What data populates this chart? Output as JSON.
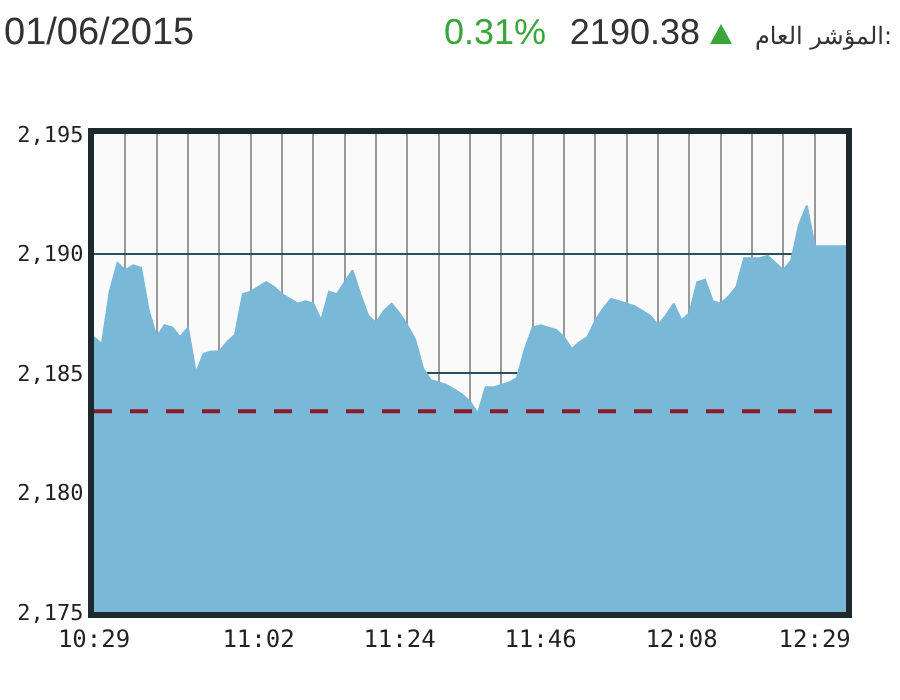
{
  "chart_data": {
    "type": "area",
    "title": "المؤشر العام:",
    "annotations": [
      "2190.38",
      "0.31%",
      "01/06/2015"
    ],
    "categories": [
      "10:29",
      null,
      null,
      null,
      null,
      null,
      null,
      null,
      null,
      null,
      null,
      null,
      null,
      null,
      null,
      null,
      null,
      null,
      null,
      null,
      null,
      "11:02",
      null,
      null,
      null,
      null,
      null,
      null,
      null,
      null,
      null,
      null,
      null,
      null,
      null,
      null,
      null,
      null,
      null,
      "11:24",
      null,
      null,
      null,
      null,
      null,
      null,
      null,
      null,
      null,
      null,
      null,
      null,
      null,
      null,
      null,
      null,
      null,
      "11:46",
      null,
      null,
      null,
      null,
      null,
      null,
      null,
      null,
      null,
      null,
      null,
      null,
      null,
      null,
      null,
      null,
      null,
      "12:08",
      null,
      null,
      null,
      null,
      null,
      null,
      null,
      null,
      null,
      null,
      null,
      null,
      null,
      null,
      null,
      null,
      "12:29",
      null,
      null,
      null,
      null
    ],
    "series": [
      {
        "color": "#7ab8d8",
        "values": [
          2186.5,
          2186.2,
          2188.4,
          2189.6,
          2189.3,
          2189.5,
          2189.4,
          2187.6,
          2186.5,
          2187.0,
          2186.9,
          2186.5,
          2186.9,
          2185.0,
          2185.8,
          2185.9,
          2185.9,
          2186.3,
          2186.6,
          2188.3,
          2188.4,
          2188.6,
          2188.8,
          2188.6,
          2188.3,
          2188.1,
          2187.9,
          2188.0,
          2187.9,
          2187.2,
          2188.4,
          2188.3,
          2188.8,
          2189.3,
          2188.3,
          2187.4,
          2187.1,
          2187.6,
          2187.9,
          2187.5,
          2187.0,
          2186.4,
          2185.2,
          2184.7,
          2184.6,
          2184.5,
          2184.3,
          2184.1,
          2183.8,
          2183.3,
          2184.4,
          2184.4,
          2184.5,
          2184.6,
          2184.8,
          2186.0,
          2186.9,
          2187.0,
          2186.9,
          2186.8,
          2186.5,
          2186.0,
          2186.3,
          2186.5,
          2187.2,
          2187.7,
          2188.1,
          2188.0,
          2187.9,
          2187.8,
          2187.6,
          2187.4,
          2187.0,
          2187.4,
          2187.9,
          2187.2,
          2187.5,
          2188.8,
          2188.9,
          2188.0,
          2187.9,
          2188.2,
          2188.6,
          2189.8,
          2189.8,
          2189.8,
          2189.9,
          2189.6,
          2189.3,
          2189.7,
          2191.2,
          2192.0,
          2190.3,
          2190.3,
          2190.3,
          2190.3,
          2190.3
        ]
      }
    ],
    "ylim": [
      2175,
      2195
    ],
    "yticks": [
      {
        "value": 2175,
        "label": "2,175"
      },
      {
        "value": 2180,
        "label": "2,180"
      },
      {
        "value": 2185,
        "label": "2,185"
      },
      {
        "value": 2190,
        "label": "2,190"
      },
      {
        "value": 2195,
        "label": "2,195"
      }
    ],
    "ref_lines": [
      {
        "axis": "y",
        "value": 2183.4,
        "color": "#8b1a2b",
        "line_style": "dashed"
      }
    ],
    "grid": true
  }
}
